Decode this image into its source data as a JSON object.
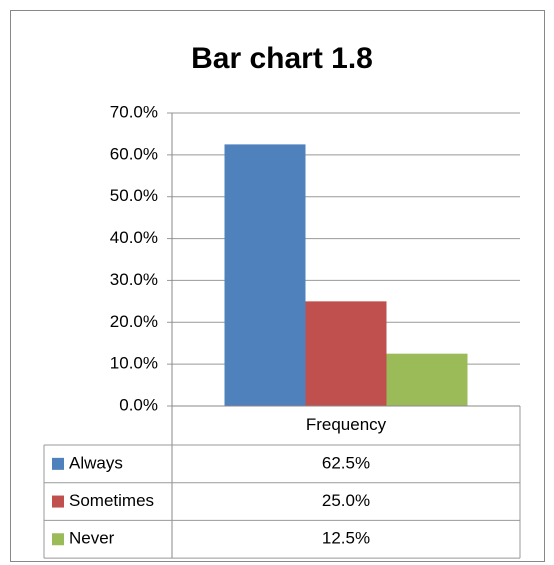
{
  "chart_data": {
    "type": "bar",
    "title": "Bar chart 1.8",
    "categories": [
      "Frequency"
    ],
    "series": [
      {
        "name": "Always",
        "color": "#4f81bd",
        "values": [
          62.5
        ],
        "value_labels": [
          "62.5%"
        ]
      },
      {
        "name": "Sometimes",
        "color": "#c0504d",
        "values": [
          25.0
        ],
        "value_labels": [
          "25.0%"
        ]
      },
      {
        "name": "Never",
        "color": "#9bbb59",
        "values": [
          12.5
        ],
        "value_labels": [
          "12.5%"
        ]
      }
    ],
    "ylim": [
      0,
      70
    ],
    "yticks": [
      {
        "value": 0,
        "label": "0.0%"
      },
      {
        "value": 10,
        "label": "10.0%"
      },
      {
        "value": 20,
        "label": "20.0%"
      },
      {
        "value": 30,
        "label": "30.0%"
      },
      {
        "value": 40,
        "label": "40.0%"
      },
      {
        "value": 50,
        "label": "50.0%"
      },
      {
        "value": 60,
        "label": "60.0%"
      },
      {
        "value": 70,
        "label": "70.0%"
      }
    ],
    "grid": true
  }
}
